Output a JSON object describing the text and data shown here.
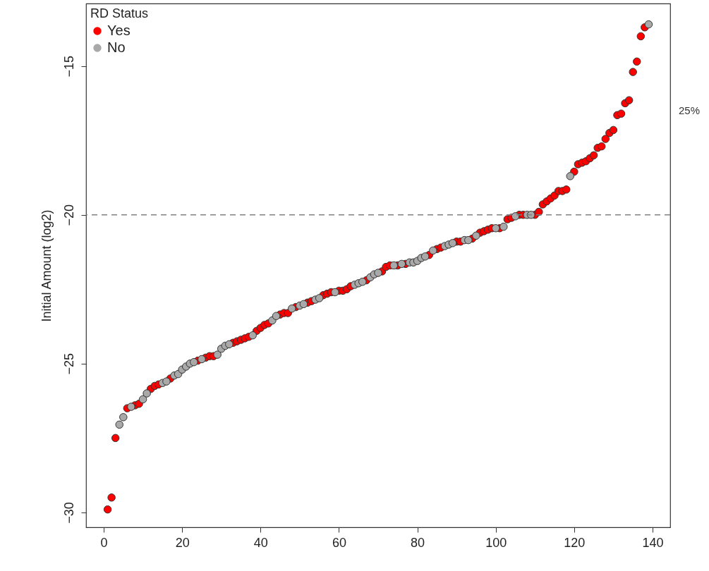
{
  "chart_data": {
    "type": "scatter",
    "ylabel": "Initial Amount (log2)",
    "legend_title": "RD Status",
    "legend": "top left",
    "marker": "circle",
    "grid": false,
    "xlim": [
      -4.5,
      144.5
    ],
    "xticks": [
      0,
      20,
      40,
      60,
      80,
      100,
      120,
      140
    ],
    "ylim": [
      -30.5,
      -12.9
    ],
    "yticks": [
      -30,
      -25,
      -20,
      -15
    ],
    "ref_lines": [
      {
        "axis": "y",
        "value": -20,
        "color": "#808080",
        "line_style": "dashed"
      }
    ],
    "annotations": [
      "25%"
    ],
    "series": [
      {
        "name": "Yes",
        "color": "#ff0000",
        "x": [
          1,
          2,
          3,
          6,
          8,
          9,
          12,
          13,
          14,
          17,
          24,
          26,
          27,
          28,
          33,
          34,
          35,
          36,
          37,
          39,
          40,
          41,
          42,
          45,
          46,
          47,
          49,
          52,
          53,
          56,
          57,
          58,
          60,
          61,
          62,
          63,
          67,
          71,
          72,
          73,
          75,
          77,
          83,
          85,
          86,
          90,
          91,
          94,
          96,
          97,
          98,
          99,
          101,
          103,
          104,
          106,
          107,
          110,
          111,
          112,
          113,
          114,
          115,
          116,
          117,
          118,
          120,
          121,
          122,
          123,
          124,
          125,
          126,
          127,
          128,
          129,
          130,
          131,
          132,
          133,
          134,
          135,
          136,
          137,
          138
        ],
        "values": [
          -29.9,
          -29.5,
          -27.5,
          -26.5,
          -26.4,
          -26.35,
          -25.85,
          -25.75,
          -25.7,
          -25.5,
          -24.9,
          -24.8,
          -24.75,
          -24.75,
          -24.3,
          -24.25,
          -24.2,
          -24.15,
          -24.1,
          -23.9,
          -23.8,
          -23.7,
          -23.65,
          -23.35,
          -23.3,
          -23.3,
          -23.1,
          -22.95,
          -22.9,
          -22.7,
          -22.65,
          -22.6,
          -22.55,
          -22.55,
          -22.5,
          -22.4,
          -22.2,
          -21.9,
          -21.75,
          -21.7,
          -21.7,
          -21.65,
          -21.35,
          -21.15,
          -21.1,
          -20.9,
          -20.9,
          -20.8,
          -20.6,
          -20.55,
          -20.5,
          -20.45,
          -20.45,
          -20.15,
          -20.1,
          -20.0,
          -20.0,
          -20.0,
          -19.9,
          -19.65,
          -19.55,
          -19.45,
          -19.35,
          -19.2,
          -19.2,
          -19.15,
          -18.55,
          -18.3,
          -18.25,
          -18.2,
          -18.1,
          -18.0,
          -17.75,
          -17.7,
          -17.45,
          -17.25,
          -17.15,
          -16.65,
          -16.6,
          -16.25,
          -16.15,
          -15.2,
          -14.85,
          -14.0,
          -13.7
        ]
      },
      {
        "name": "No",
        "color": "#a9a9a9",
        "x": [
          4,
          5,
          7,
          10,
          11,
          15,
          16,
          18,
          19,
          20,
          21,
          22,
          23,
          25,
          29,
          30,
          31,
          32,
          38,
          43,
          44,
          48,
          50,
          51,
          54,
          55,
          59,
          64,
          65,
          66,
          68,
          69,
          70,
          74,
          76,
          78,
          79,
          80,
          81,
          82,
          84,
          87,
          88,
          89,
          92,
          93,
          95,
          100,
          102,
          105,
          108,
          109,
          119,
          139
        ],
        "values": [
          -27.05,
          -26.8,
          -26.45,
          -26.2,
          -26.0,
          -25.65,
          -25.6,
          -25.4,
          -25.35,
          -25.2,
          -25.1,
          -25.0,
          -24.95,
          -24.85,
          -24.7,
          -24.5,
          -24.4,
          -24.35,
          -24.05,
          -23.55,
          -23.4,
          -23.15,
          -23.05,
          -23.0,
          -22.85,
          -22.8,
          -22.6,
          -22.35,
          -22.3,
          -22.25,
          -22.1,
          -22.0,
          -21.95,
          -21.7,
          -21.65,
          -21.6,
          -21.6,
          -21.55,
          -21.45,
          -21.4,
          -21.2,
          -21.05,
          -21.0,
          -20.95,
          -20.85,
          -20.85,
          -20.7,
          -20.45,
          -20.4,
          -20.05,
          -20.0,
          -20.0,
          -18.7,
          -13.6
        ]
      }
    ]
  }
}
